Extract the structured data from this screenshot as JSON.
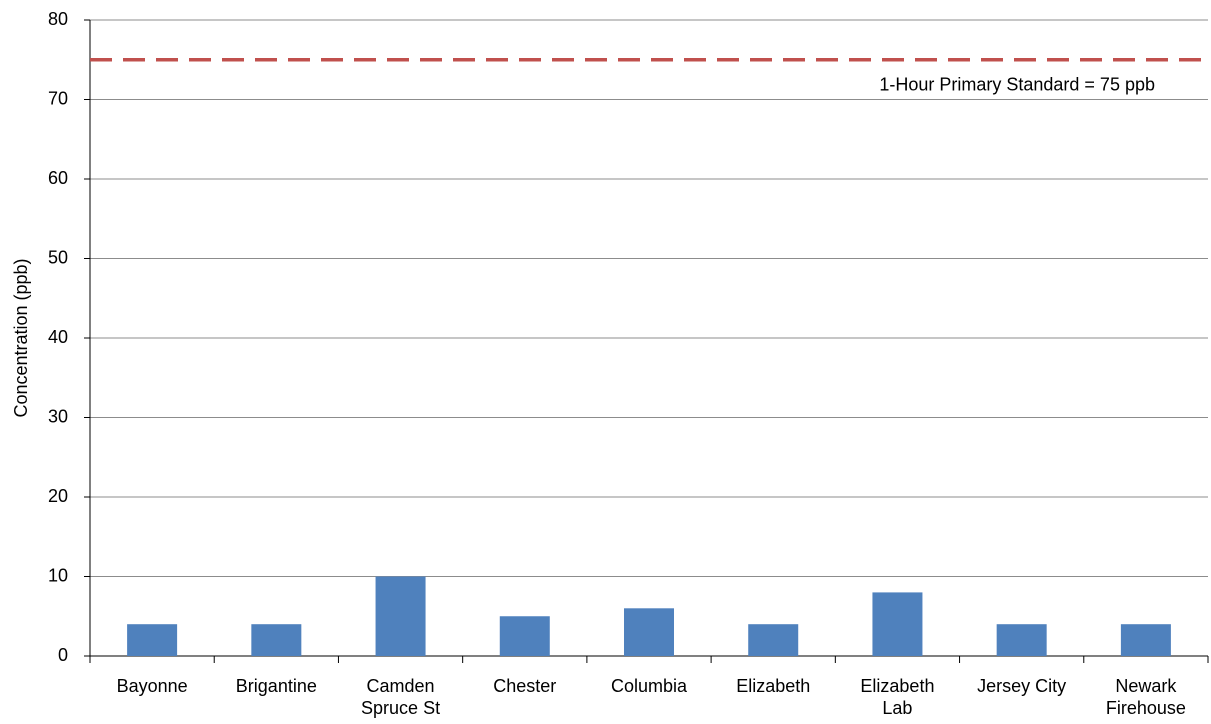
{
  "chart_data": {
    "type": "bar",
    "y_label": "Concentration (ppb)",
    "categories": [
      "Bayonne",
      "Brigantine",
      "Camden\nSpruce St",
      "Chester",
      "Columbia",
      "Elizabeth",
      "Elizabeth\nLab",
      "Jersey City",
      "Newark\nFirehouse"
    ],
    "values": [
      4,
      4,
      10,
      5,
      6,
      4,
      8,
      4,
      4
    ],
    "color": "#4f81bd",
    "ylim": [
      0,
      80
    ],
    "yticks": [
      0,
      10,
      20,
      30,
      40,
      50,
      60,
      70,
      80
    ],
    "grid": true,
    "reference_line": {
      "value": 75,
      "label": "1-Hour Primary Standard = 75 ppb",
      "color": "#c0504d"
    }
  }
}
